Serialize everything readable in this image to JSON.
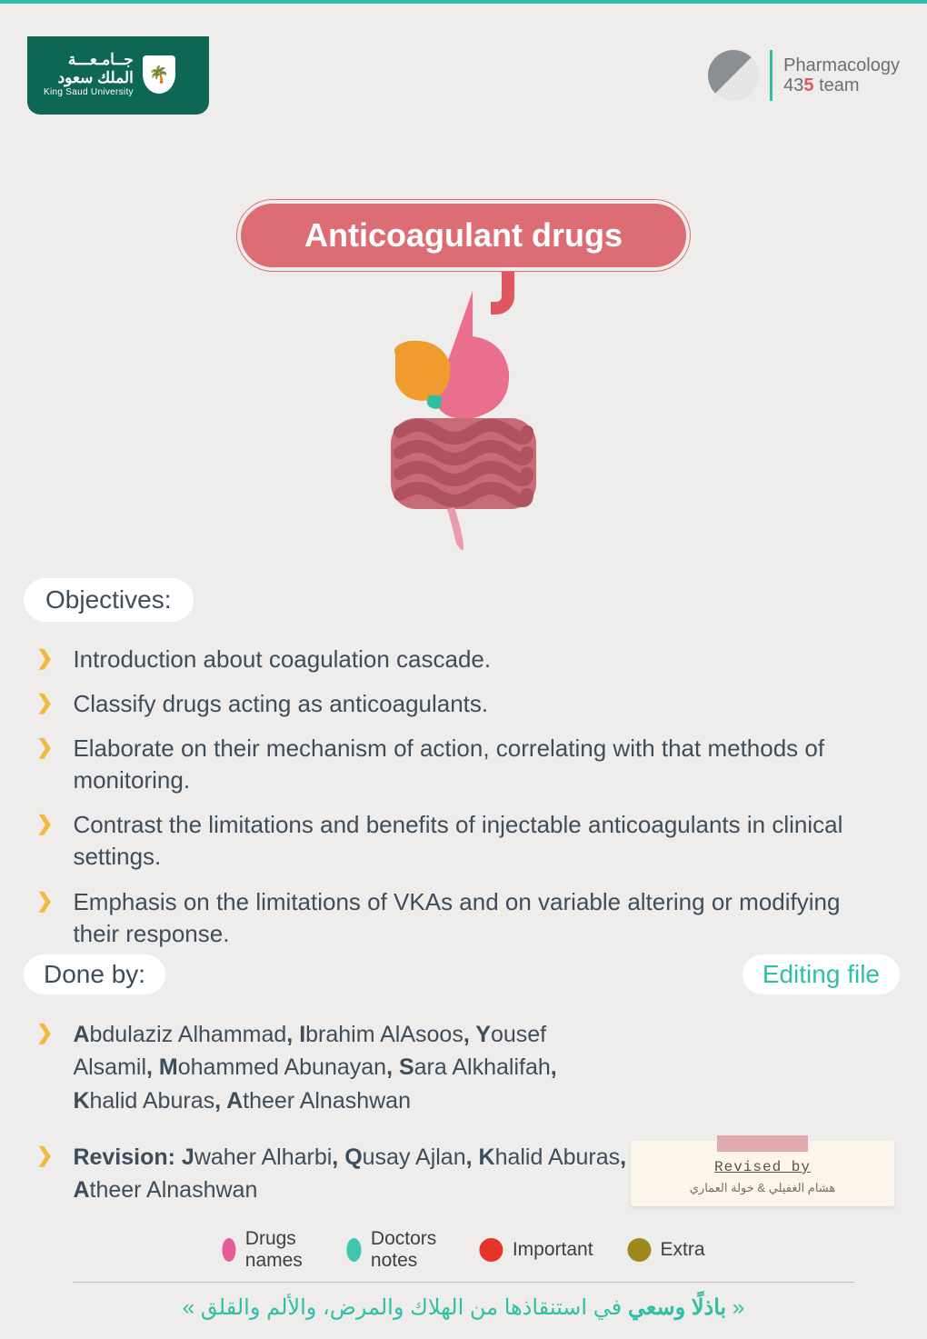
{
  "colors": {
    "background": "#eeedec",
    "teal": "#2fbfa5",
    "ksu_green": "#0e6655",
    "title_pill": "#dd6d74",
    "accent_red": "#e0585f",
    "text_body": "#3f4d5a",
    "chevron": "#f4b93c",
    "legend_pink": "#e65b9c",
    "legend_teal": "#42c5b0",
    "legend_red": "#e4342c",
    "legend_olive": "#9d8a1e"
  },
  "header": {
    "ksu_ar_line1": "جــامـعـــة",
    "ksu_ar_line2": "الملك سعود",
    "ksu_en": "King Saud University",
    "team_line1": "Pharmacology",
    "team_prefix": "43",
    "team_accent": "5",
    "team_suffix": " team"
  },
  "title": "Anticoagulant drugs",
  "objectives_label": "Objectives:",
  "objectives": [
    "Introduction about coagulation cascade.",
    "Classify drugs acting as anticoagulants.",
    "Elaborate on their mechanism of action, correlating with that methods of monitoring.",
    "Contrast the limitations and benefits of injectable anticoagulants in clinical settings.",
    "Emphasis on the limitations of VKAs and on variable altering or modifying their response."
  ],
  "doneby_label": "Done by:",
  "editing_file": "Editing file",
  "contributors_html": "<b>A</b>bdulaziz Alhammad<b>, I</b>brahim AlAsoos<b>, Y</b>ousef Alsamil<b>, M</b>ohammed Abunayan<b>, S</b>ara Alkhalifah<b>, K</b>halid Aburas<b>, A</b>theer Alnashwan",
  "revision_html": "<b>Revision: J</b>waher Alharbi<b>, Q</b>usay Ajlan<b>, K</b>halid Aburas<b>, A</b>theer Alnashwan",
  "revised_card": {
    "title": "Revised by",
    "names": "هشام الغفيلي   &   خولة العماري"
  },
  "legend": [
    {
      "label": "Drugs names",
      "color": "#e65b9c"
    },
    {
      "label": "Doctors notes",
      "color": "#42c5b0"
    },
    {
      "label": "Important",
      "color": "#e4342c"
    },
    {
      "label": "Extra",
      "color": "#9d8a1e"
    }
  ],
  "quote_html": "« <b>باذلًا وسعي</b> في استنقاذها من الهلاك والمرض، والألم والقلق »",
  "fontsize": {
    "title": 36,
    "section_label": 28,
    "body": 26,
    "names": 25,
    "legend": 21,
    "quote": 24
  }
}
